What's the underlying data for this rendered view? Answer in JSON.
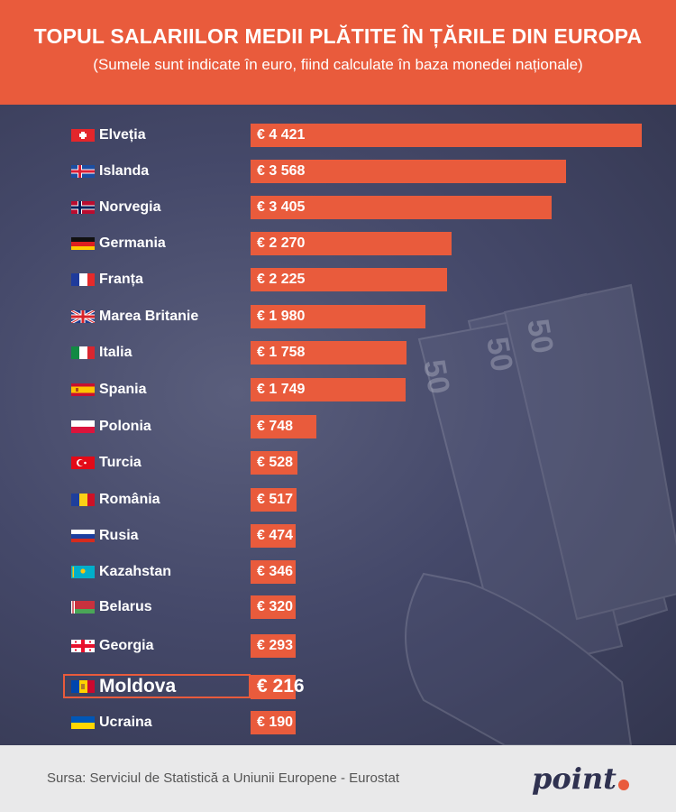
{
  "header": {
    "title": "TOPUL SALARIILOR MEDII PLĂTITE ÎN ȚĂRILE DIN EUROPA",
    "subtitle": "(Sumele sunt indicate în euro, fiind calculate în baza monedei naționale)"
  },
  "chart_data": {
    "type": "bar",
    "orientation": "horizontal",
    "title": "TOPUL SALARIILOR MEDII PLĂTITE ÎN ȚĂRILE DIN EUROPA",
    "subtitle": "(Sumele sunt indicate în euro, fiind calculate în baza monedei naționale)",
    "categories": [
      "Elveția",
      "Islanda",
      "Norvegia",
      "Germania",
      "Franța",
      "Marea Britanie",
      "Italia",
      "Spania",
      "Polonia",
      "Turcia",
      "România",
      "Rusia",
      "Kazahstan",
      "Belarus",
      "Georgia",
      "Moldova",
      "Ucraina"
    ],
    "values": [
      4421,
      3568,
      3405,
      2270,
      2225,
      1980,
      1758,
      1749,
      748,
      528,
      517,
      474,
      346,
      320,
      293,
      216,
      190
    ],
    "value_labels": [
      "€ 4 421",
      "€ 3 568",
      "€ 3 405",
      "€ 2 270",
      "€ 2 225",
      "€ 1 980",
      "€ 1 758",
      "€ 1 749",
      "€ 748",
      "€ 528",
      "€ 517",
      "€ 474",
      "€ 346",
      "€ 320",
      "€ 293",
      "€ 216",
      "€ 190"
    ],
    "flags": [
      "flag-switzerland-icon",
      "flag-iceland-icon",
      "flag-norway-icon",
      "flag-germany-icon",
      "flag-france-icon",
      "flag-uk-icon",
      "flag-italy-icon",
      "flag-spain-icon",
      "flag-poland-icon",
      "flag-turkey-icon",
      "flag-romania-icon",
      "flag-russia-icon",
      "flag-kazakhstan-icon",
      "flag-belarus-icon",
      "flag-georgia-icon",
      "flag-moldova-icon",
      "flag-ukraine-icon"
    ],
    "highlight": "Moldova",
    "xlim": [
      0,
      4421
    ],
    "grid": false,
    "bar_color": "#e95b3c"
  },
  "footer": {
    "source": "Sursa: Serviciul de Statistică a Uniunii Europene - Eurostat",
    "logo_text": "point"
  },
  "colors": {
    "accent": "#e95b3c",
    "background": "#3c3f5c",
    "footer": "#e9e9ea"
  }
}
